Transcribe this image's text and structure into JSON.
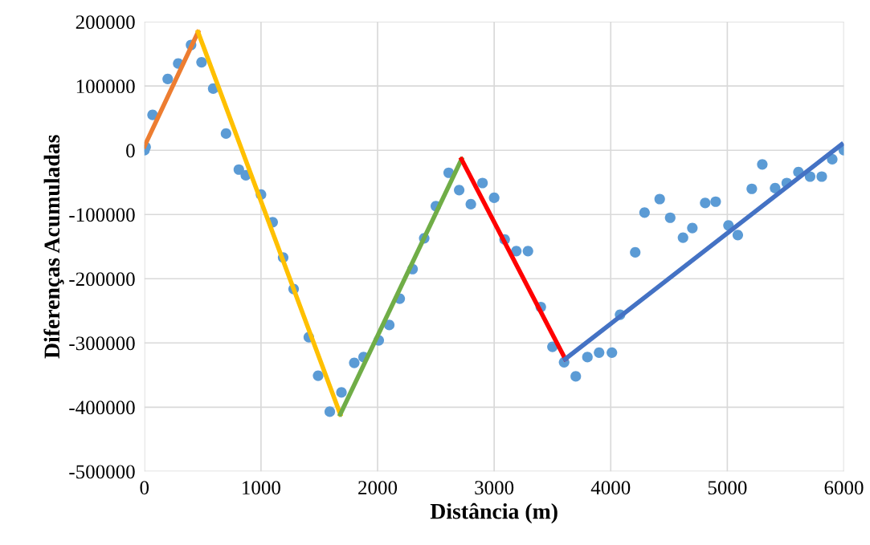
{
  "chart_data": {
    "type": "scatter",
    "xlabel": "Distância (m)",
    "ylabel": "Diferenças Acumuladas",
    "xlim": [
      0,
      6000
    ],
    "xticks": [
      0,
      1000,
      2000,
      3000,
      4000,
      5000,
      6000
    ],
    "ylim": [
      -500000,
      200000
    ],
    "yticks": [
      -500000,
      -400000,
      -300000,
      -200000,
      -100000,
      0,
      100000,
      200000
    ],
    "grid": true,
    "legend": false,
    "series": [
      {
        "color": "#5b9bd5",
        "marker": "circle",
        "x": [
          0,
          10,
          70,
          200,
          290,
          400,
          490,
          590,
          700,
          810,
          870,
          1000,
          1100,
          1190,
          1280,
          1410,
          1490,
          1590,
          1690,
          1800,
          1880,
          2010,
          2100,
          2190,
          2300,
          2400,
          2500,
          2610,
          2700,
          2800,
          2900,
          3000,
          3090,
          3190,
          3290,
          3400,
          3500,
          3600,
          3700,
          3800,
          3900,
          4010,
          4080,
          4210,
          4290,
          4420,
          4510,
          4620,
          4700,
          4810,
          4900,
          5010,
          5090,
          5210,
          5300,
          5410,
          5510,
          5610,
          5710,
          5810,
          5900,
          6000
        ],
        "values": [
          0,
          5000,
          55000,
          111000,
          135000,
          164000,
          137000,
          96000,
          26000,
          -30000,
          -39000,
          -69000,
          -112000,
          -167000,
          -216000,
          -291000,
          -351000,
          -407000,
          -377000,
          -331000,
          -322000,
          -296000,
          -272000,
          -231000,
          -185000,
          -137000,
          -87000,
          -35000,
          -62000,
          -84000,
          -51000,
          -74000,
          -139000,
          -157000,
          -157000,
          -244000,
          -306000,
          -330000,
          -352000,
          -322000,
          -315000,
          -315000,
          -256000,
          -159000,
          -97000,
          -76000,
          -105000,
          -136000,
          -121000,
          -82000,
          -80000,
          -117000,
          -132000,
          -60000,
          -22000,
          -59000,
          -51000,
          -34000,
          -41000,
          -41000,
          -14000,
          0
        ]
      },
      {
        "type": "line",
        "color": "#ed7d31",
        "x": [
          0,
          460
        ],
        "values": [
          6000,
          184000
        ]
      },
      {
        "type": "line",
        "color": "#ffc000",
        "x": [
          460,
          1680
        ],
        "values": [
          184000,
          -411000
        ]
      },
      {
        "type": "line",
        "color": "#70ad47",
        "x": [
          1680,
          2720
        ],
        "values": [
          -411000,
          -14000
        ]
      },
      {
        "type": "line",
        "color": "#ff0000",
        "x": [
          2720,
          3610
        ],
        "values": [
          -14000,
          -325000
        ]
      },
      {
        "type": "line",
        "color": "#4472c4",
        "x": [
          3610,
          5980
        ],
        "values": [
          -325000,
          9000
        ]
      }
    ]
  }
}
